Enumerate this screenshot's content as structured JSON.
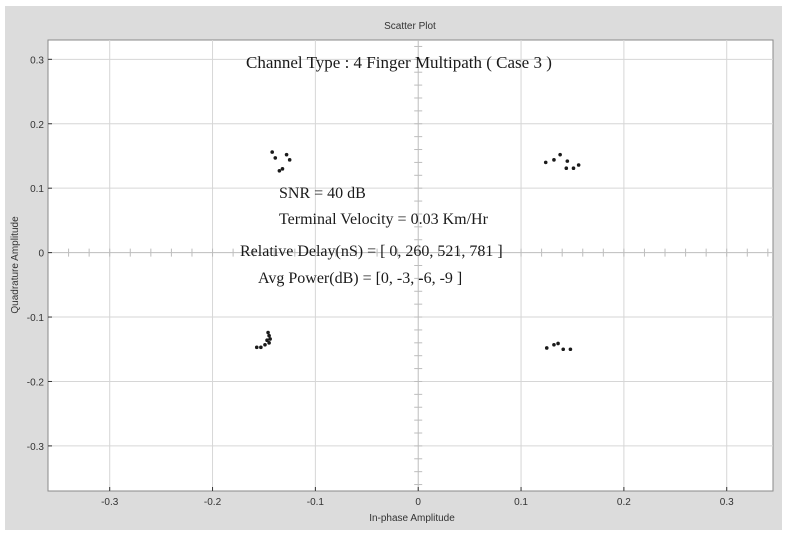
{
  "chart_data": {
    "type": "scatter",
    "title": "Scatter Plot",
    "xlabel": "In-phase Amplitude",
    "ylabel": "Quadrature Amplitude",
    "xlim": [
      -0.36,
      0.345
    ],
    "ylim": [
      -0.37,
      0.33
    ],
    "xticks": [
      -0.3,
      -0.2,
      -0.1,
      0,
      0.1,
      0.2,
      0.3
    ],
    "xtick_labels": [
      "-0.3",
      "-0.2",
      "-0.1",
      "0",
      "0.1",
      "0.2",
      "0.3"
    ],
    "yticks": [
      0.3,
      0.2,
      0.1,
      0,
      -0.1,
      -0.2,
      -0.3
    ],
    "ytick_labels": [
      "0.3",
      "0.2",
      "0.1",
      "0",
      "-0.1",
      "-0.2",
      "-0.3"
    ],
    "grid": true,
    "annotations": [
      "Channel Type : 4 Finger Multipath ( Case 3 )",
      "SNR = 40 dB",
      "Terminal Velocity = 0.03 Km/Hr",
      "Relative Delay(nS) = [ 0, 260, 521, 781 ]",
      "Avg Power(dB) = [0, -3, -6, -9 ]"
    ],
    "points": [
      {
        "x": -0.139,
        "y": 0.147
      },
      {
        "x": -0.128,
        "y": 0.152
      },
      {
        "x": -0.125,
        "y": 0.144
      },
      {
        "x": -0.132,
        "y": 0.13
      },
      {
        "x": -0.135,
        "y": 0.127
      },
      {
        "x": -0.142,
        "y": 0.156
      },
      {
        "x": 0.124,
        "y": 0.14
      },
      {
        "x": 0.132,
        "y": 0.144
      },
      {
        "x": 0.138,
        "y": 0.152
      },
      {
        "x": 0.145,
        "y": 0.142
      },
      {
        "x": 0.144,
        "y": 0.131
      },
      {
        "x": 0.151,
        "y": 0.131
      },
      {
        "x": 0.156,
        "y": 0.136
      },
      {
        "x": -0.157,
        "y": -0.147
      },
      {
        "x": -0.153,
        "y": -0.147
      },
      {
        "x": -0.149,
        "y": -0.143
      },
      {
        "x": -0.145,
        "y": -0.14
      },
      {
        "x": -0.144,
        "y": -0.134
      },
      {
        "x": -0.145,
        "y": -0.129
      },
      {
        "x": -0.146,
        "y": -0.124
      },
      {
        "x": -0.147,
        "y": -0.136
      },
      {
        "x": 0.125,
        "y": -0.148
      },
      {
        "x": 0.132,
        "y": -0.143
      },
      {
        "x": 0.136,
        "y": -0.141
      },
      {
        "x": 0.141,
        "y": -0.15
      },
      {
        "x": 0.148,
        "y": -0.15
      }
    ]
  },
  "colors": {
    "frame": "#dcdcdc",
    "plot_bg": "#ffffff",
    "grid": "#d6d6d6",
    "axis": "#333333",
    "points": "#1a1a1a",
    "annotation_text": "#1a1a1a"
  }
}
